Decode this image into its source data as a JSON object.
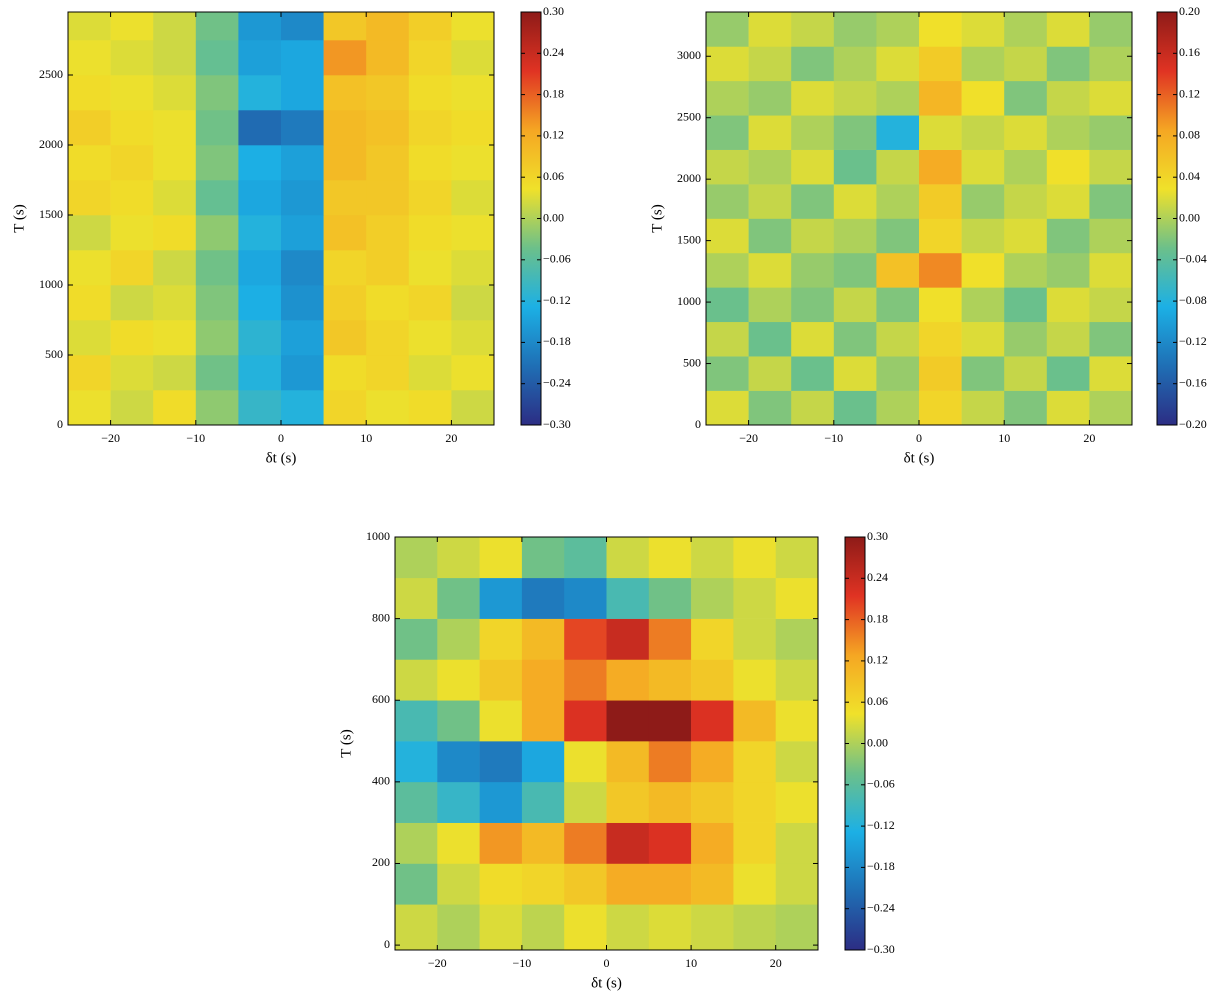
{
  "chart_data": [
    {
      "type": "heatmap",
      "xlabel": "δt (s)",
      "ylabel": "T (s)",
      "x_edges": [
        -25,
        -20,
        -15,
        -10,
        -5,
        0,
        5,
        10,
        15,
        20,
        25
      ],
      "y_edges": [
        0,
        250,
        500,
        750,
        1000,
        1250,
        1500,
        1750,
        2000,
        2250,
        2500,
        2750,
        2950
      ],
      "z": [
        [
          0.04,
          0.02,
          0.05,
          -0.02,
          -0.1,
          -0.12,
          0.06,
          0.04,
          0.05,
          0.02
        ],
        [
          0.06,
          0.03,
          0.02,
          -0.04,
          -0.12,
          -0.16,
          0.05,
          0.06,
          0.03,
          0.04
        ],
        [
          0.03,
          0.05,
          0.04,
          -0.02,
          -0.11,
          -0.15,
          0.08,
          0.06,
          0.04,
          0.03
        ],
        [
          0.05,
          0.02,
          0.03,
          -0.03,
          -0.13,
          -0.17,
          0.07,
          0.05,
          0.06,
          0.02
        ],
        [
          0.04,
          0.06,
          0.02,
          -0.04,
          -0.14,
          -0.18,
          0.06,
          0.07,
          0.04,
          0.03
        ],
        [
          0.02,
          0.04,
          0.05,
          -0.02,
          -0.12,
          -0.15,
          0.09,
          0.07,
          0.05,
          0.04
        ],
        [
          0.06,
          0.05,
          0.03,
          -0.05,
          -0.14,
          -0.16,
          0.08,
          0.08,
          0.06,
          0.03
        ],
        [
          0.05,
          0.06,
          0.04,
          -0.03,
          -0.13,
          -0.15,
          0.1,
          0.08,
          0.05,
          0.04
        ],
        [
          0.07,
          0.05,
          0.04,
          -0.04,
          -0.22,
          -0.2,
          0.1,
          0.09,
          0.06,
          0.05
        ],
        [
          0.05,
          0.04,
          0.03,
          -0.03,
          -0.12,
          -0.14,
          0.09,
          0.08,
          0.05,
          0.04
        ],
        [
          0.04,
          0.03,
          0.02,
          -0.05,
          -0.15,
          -0.14,
          0.14,
          0.1,
          0.06,
          0.03
        ],
        [
          0.03,
          0.04,
          0.02,
          -0.04,
          -0.16,
          -0.18,
          0.08,
          0.1,
          0.07,
          0.04
        ]
      ],
      "xlim": [
        -25,
        25
      ],
      "ylim": [
        0,
        2950
      ],
      "xticks": [
        {
          "value": -20,
          "label": "−20"
        },
        {
          "value": -10,
          "label": "−10"
        },
        0,
        10,
        20
      ],
      "yticks": [
        0,
        500,
        1000,
        1500,
        2000,
        2500
      ],
      "clim": [
        -0.3,
        0.3
      ],
      "cticks": [
        {
          "value": 0.3,
          "label": "0.30"
        },
        {
          "value": 0.24,
          "label": "0.24"
        },
        {
          "value": 0.18,
          "label": "0.18"
        },
        {
          "value": 0.12,
          "label": "0.12"
        },
        {
          "value": 0.06,
          "label": "0.06"
        },
        {
          "value": 0,
          "label": "0.00"
        },
        {
          "value": -0.06,
          "label": "−0.06"
        },
        {
          "value": -0.12,
          "label": "−0.12"
        },
        {
          "value": -0.18,
          "label": "−0.18"
        },
        {
          "value": -0.24,
          "label": "−0.24"
        },
        {
          "value": -0.3,
          "label": "−0.30"
        }
      ],
      "colormap": [
        "#2c2d84",
        "#1f6fb5",
        "#1cb0e5",
        "#6cc08a",
        "#f0e12a",
        "#f5a623",
        "#e03323",
        "#8e1b18"
      ]
    },
    {
      "type": "heatmap",
      "xlabel": "δt (s)",
      "ylabel": "T (s)",
      "x_edges": [
        -25,
        -20,
        -15,
        -10,
        -5,
        0,
        5,
        10,
        15,
        20,
        25
      ],
      "y_edges": [
        0,
        280,
        560,
        840,
        1120,
        1400,
        1680,
        1960,
        2240,
        2520,
        2800,
        3080,
        3360
      ],
      "z": [
        [
          0.02,
          -0.02,
          0.01,
          -0.03,
          0.0,
          0.04,
          0.01,
          -0.02,
          0.02,
          0.0
        ],
        [
          -0.02,
          0.01,
          -0.03,
          0.02,
          -0.01,
          0.05,
          -0.02,
          0.01,
          -0.03,
          0.02
        ],
        [
          0.01,
          -0.03,
          0.02,
          -0.02,
          0.01,
          0.04,
          0.02,
          -0.01,
          0.01,
          -0.02
        ],
        [
          -0.03,
          0.0,
          -0.02,
          0.01,
          -0.02,
          0.03,
          0.0,
          -0.03,
          0.02,
          0.01
        ],
        [
          0.0,
          0.02,
          -0.01,
          -0.02,
          0.06,
          0.1,
          0.03,
          0.0,
          -0.01,
          0.02
        ],
        [
          0.02,
          -0.02,
          0.01,
          0.0,
          -0.02,
          0.04,
          0.01,
          0.02,
          -0.02,
          0.0
        ],
        [
          -0.01,
          0.01,
          -0.02,
          0.02,
          0.0,
          0.05,
          -0.01,
          0.01,
          0.02,
          -0.02
        ],
        [
          0.01,
          0.0,
          0.02,
          -0.03,
          0.01,
          0.08,
          0.02,
          0.0,
          0.03,
          0.01
        ],
        [
          -0.02,
          0.02,
          0.0,
          -0.02,
          -0.08,
          0.02,
          0.01,
          0.02,
          0.0,
          -0.01
        ],
        [
          0.0,
          -0.01,
          0.02,
          0.01,
          0.0,
          0.07,
          0.03,
          -0.02,
          0.01,
          0.02
        ],
        [
          0.02,
          0.01,
          -0.02,
          0.0,
          0.02,
          0.05,
          0.0,
          0.01,
          -0.02,
          0.0
        ],
        [
          -0.01,
          0.02,
          0.01,
          -0.01,
          0.0,
          0.03,
          0.02,
          0.0,
          0.02,
          -0.01
        ]
      ],
      "xlim": [
        -25,
        25
      ],
      "ylim": [
        0,
        3360
      ],
      "xticks": [
        {
          "value": -20,
          "label": "−20"
        },
        {
          "value": -10,
          "label": "−10"
        },
        0,
        10,
        20
      ],
      "yticks": [
        0,
        500,
        1000,
        1500,
        2000,
        2500,
        3000
      ],
      "clim": [
        -0.2,
        0.2
      ],
      "cticks": [
        {
          "value": 0.2,
          "label": "0.20"
        },
        {
          "value": 0.16,
          "label": "0.16"
        },
        {
          "value": 0.12,
          "label": "0.12"
        },
        {
          "value": 0.08,
          "label": "0.08"
        },
        {
          "value": 0.04,
          "label": "0.04"
        },
        {
          "value": 0,
          "label": "0.00"
        },
        {
          "value": -0.04,
          "label": "−0.04"
        },
        {
          "value": -0.08,
          "label": "−0.08"
        },
        {
          "value": -0.12,
          "label": "−0.12"
        },
        {
          "value": -0.16,
          "label": "−0.16"
        },
        {
          "value": -0.2,
          "label": "−0.20"
        }
      ],
      "colormap": [
        "#2c2d84",
        "#1f6fb5",
        "#1cb0e5",
        "#6cc08a",
        "#f0e12a",
        "#f5a623",
        "#e03323",
        "#8e1b18"
      ]
    },
    {
      "type": "heatmap",
      "xlabel": "δt (s)",
      "ylabel": "T (s)",
      "x_edges": [
        -25,
        -20,
        -15,
        -10,
        -5,
        0,
        5,
        10,
        15,
        20,
        25
      ],
      "y_edges": [
        -12,
        100,
        200,
        300,
        400,
        500,
        600,
        700,
        800,
        900,
        1000
      ],
      "z": [
        [
          0.02,
          0.0,
          0.03,
          0.01,
          0.04,
          0.02,
          0.03,
          0.02,
          0.01,
          0.0
        ],
        [
          -0.04,
          0.02,
          0.05,
          0.06,
          0.08,
          0.12,
          0.12,
          0.1,
          0.04,
          0.02
        ],
        [
          0.0,
          0.04,
          0.14,
          0.1,
          0.16,
          0.24,
          0.22,
          0.12,
          0.06,
          0.02
        ],
        [
          -0.06,
          -0.1,
          -0.16,
          -0.08,
          0.02,
          0.08,
          0.1,
          0.08,
          0.06,
          0.04
        ],
        [
          -0.12,
          -0.18,
          -0.2,
          -0.14,
          0.04,
          0.1,
          0.16,
          0.12,
          0.06,
          0.02
        ],
        [
          -0.08,
          -0.04,
          0.04,
          0.12,
          0.22,
          0.3,
          0.3,
          0.22,
          0.1,
          0.04
        ],
        [
          0.02,
          0.04,
          0.08,
          0.12,
          0.16,
          0.12,
          0.1,
          0.08,
          0.04,
          0.02
        ],
        [
          -0.04,
          0.0,
          0.06,
          0.1,
          0.2,
          0.24,
          0.16,
          0.06,
          0.02,
          0.0
        ],
        [
          0.02,
          -0.04,
          -0.16,
          -0.2,
          -0.18,
          -0.08,
          -0.04,
          0.0,
          0.02,
          0.04
        ],
        [
          0.0,
          0.02,
          0.04,
          -0.04,
          -0.06,
          0.02,
          0.04,
          0.02,
          0.04,
          0.02
        ]
      ],
      "xlim": [
        -25,
        25
      ],
      "ylim": [
        -12,
        1000
      ],
      "xticks": [
        {
          "value": -20,
          "label": "−20"
        },
        {
          "value": -10,
          "label": "−10"
        },
        0,
        10,
        20
      ],
      "yticks": [
        0,
        200,
        400,
        600,
        800,
        1000
      ],
      "clim": [
        -0.3,
        0.3
      ],
      "cticks": [
        {
          "value": 0.3,
          "label": "0.30"
        },
        {
          "value": 0.24,
          "label": "0.24"
        },
        {
          "value": 0.18,
          "label": "0.18"
        },
        {
          "value": 0.12,
          "label": "0.12"
        },
        {
          "value": 0.06,
          "label": "0.06"
        },
        {
          "value": 0,
          "label": "0.00"
        },
        {
          "value": -0.06,
          "label": "−0.06"
        },
        {
          "value": -0.12,
          "label": "−0.12"
        },
        {
          "value": -0.18,
          "label": "−0.18"
        },
        {
          "value": -0.24,
          "label": "−0.24"
        },
        {
          "value": -0.3,
          "label": "−0.30"
        }
      ],
      "colormap": [
        "#2c2d84",
        "#1f6fb5",
        "#1cb0e5",
        "#6cc08a",
        "#f0e12a",
        "#f5a623",
        "#e03323",
        "#8e1b18"
      ]
    }
  ]
}
